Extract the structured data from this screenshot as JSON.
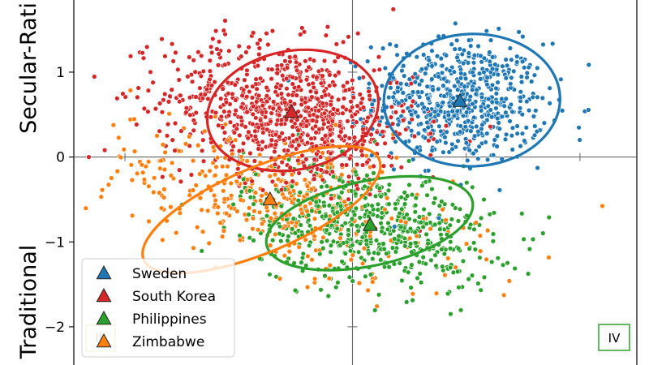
{
  "chart_data": {
    "type": "scatter",
    "ylabel_upper": "Secular-Rati",
    "ylabel_lower": "Traditional",
    "xlim": [
      -4.9,
      5.0
    ],
    "ylim": [
      -2.45,
      1.85
    ],
    "y_ticks": [
      1,
      0,
      -1,
      -2
    ],
    "y_tick_labels": [
      "1",
      "0",
      "−1",
      "−2"
    ],
    "grid": false,
    "axis_lines": {
      "x": 0,
      "y": 0
    },
    "legend_position": "lower-left",
    "quadrant_labels": [
      {
        "text": "III",
        "position": "bottom-left"
      },
      {
        "text": "IV",
        "position": "bottom-right"
      }
    ],
    "series": [
      {
        "name": "Sweden",
        "color": "#1f77b4",
        "point_count": 650,
        "mean": [
          1.9,
          0.66
        ],
        "spread": [
          0.75,
          0.36
        ],
        "corr": -0.05,
        "ellipse": {
          "center": [
            2.1,
            0.67
          ],
          "rx": 1.55,
          "ry": 0.78,
          "angle_deg": -2
        }
      },
      {
        "name": "South Korea",
        "color": "#d62728",
        "point_count": 900,
        "mean": [
          -1.1,
          0.52
        ],
        "spread": [
          1.1,
          0.42
        ],
        "corr": -0.25,
        "ellipse": {
          "center": [
            -1.05,
            0.55
          ],
          "rx": 1.52,
          "ry": 0.7,
          "angle_deg": -11
        }
      },
      {
        "name": "Philippines",
        "color": "#2ca02c",
        "point_count": 600,
        "mean": [
          0.3,
          -0.8
        ],
        "spread": [
          1.1,
          0.36
        ],
        "corr": -0.3,
        "ellipse": {
          "center": [
            0.3,
            -0.78
          ],
          "rx": 1.85,
          "ry": 0.5,
          "angle_deg": -12
        }
      },
      {
        "name": "Zimbabwe",
        "color": "#ff7f0e",
        "point_count": 420,
        "mean": [
          -1.4,
          -0.5
        ],
        "spread": [
          1.6,
          0.45
        ],
        "corr": -0.55,
        "ellipse": {
          "center": [
            -1.6,
            -0.62
          ],
          "rx": 2.25,
          "ry": 0.5,
          "angle_deg": -23
        }
      }
    ],
    "centroids": [
      {
        "series": "Sweden",
        "x": 1.89,
        "y": 0.66
      },
      {
        "series": "South Korea",
        "x": -1.07,
        "y": 0.53
      },
      {
        "series": "Philippines",
        "x": 0.31,
        "y": -0.8
      },
      {
        "series": "Zimbabwe",
        "x": -1.45,
        "y": -0.5
      }
    ],
    "legend": [
      "Sweden",
      "South Korea",
      "Philippines",
      "Zimbabwe"
    ]
  }
}
